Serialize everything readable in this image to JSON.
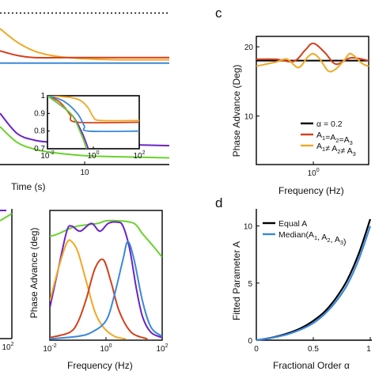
{
  "chart_data": [
    {
      "panel": "top-left (cropped)",
      "type": "line",
      "xlabel": "Time (s)",
      "x_ticks": [
        "10"
      ],
      "series": [
        {
          "color": "#000000",
          "style": "dotted",
          "x": [
            0,
            10,
            20
          ],
          "y": [
            1.0,
            1.0,
            1.0
          ]
        },
        {
          "color": "#f0a824",
          "x": [
            0,
            2,
            4,
            6,
            8,
            10,
            14,
            20
          ],
          "y": [
            0.93,
            0.87,
            0.83,
            0.81,
            0.8,
            0.795,
            0.79,
            0.79
          ]
        },
        {
          "color": "#d4401c",
          "x": [
            0,
            2,
            4,
            8,
            12,
            20
          ],
          "y": [
            0.83,
            0.81,
            0.8,
            0.8,
            0.8,
            0.8
          ]
        },
        {
          "color": "#3b88d8",
          "x": [
            0,
            20
          ],
          "y": [
            0.775,
            0.775
          ]
        },
        {
          "color": "#6b24c8",
          "x": [
            0,
            2,
            4,
            6,
            10,
            14,
            20
          ],
          "y": [
            0.55,
            0.46,
            0.43,
            0.42,
            0.41,
            0.41,
            0.405
          ]
        },
        {
          "color": "#6ad22c",
          "x": [
            0,
            2,
            4,
            6,
            10,
            14,
            20
          ],
          "y": [
            0.49,
            0.42,
            0.39,
            0.375,
            0.36,
            0.355,
            0.35
          ]
        }
      ],
      "inset": {
        "type": "line",
        "x_scale": "log",
        "x_ticks": [
          "10",
          "10",
          "10"
        ],
        "x_tick_exponents": [
          "-2",
          "0",
          "2"
        ],
        "y_ticks": [
          "1",
          "0.9",
          "0.8",
          "0.7"
        ],
        "ylim": [
          0.7,
          1.0
        ],
        "series": [
          {
            "color": "#f0a824",
            "x": [
              0.01,
              0.1,
              0.3,
              0.6,
              1,
              2,
              100
            ],
            "y": [
              1.0,
              0.99,
              0.97,
              0.93,
              0.88,
              0.86,
              0.86
            ]
          },
          {
            "color": "#d4401c",
            "x": [
              0.01,
              0.03,
              0.06,
              0.1,
              0.2,
              100
            ],
            "y": [
              1.0,
              0.97,
              0.93,
              0.89,
              0.85,
              0.85
            ]
          },
          {
            "color": "#3b88d8",
            "x": [
              0.01,
              0.05,
              0.2,
              0.4,
              0.6,
              100
            ],
            "y": [
              1.0,
              0.97,
              0.9,
              0.83,
              0.8,
              0.8
            ]
          },
          {
            "color": "#6b24c8",
            "x": [
              0.01,
              0.1,
              0.3,
              0.6
            ],
            "y": [
              1.0,
              0.9,
              0.8,
              0.7
            ]
          },
          {
            "color": "#6ad22c",
            "x": [
              0.01,
              0.1,
              0.3,
              0.5
            ],
            "y": [
              1.0,
              0.9,
              0.78,
              0.7
            ]
          }
        ]
      }
    },
    {
      "panel": "c",
      "type": "line",
      "ylabel": "Phase Advance (Deg)",
      "xlabel": "Frequency (Hz)",
      "x_scale": "log",
      "x_ticks": [
        "10"
      ],
      "x_tick_exponents": [
        "0"
      ],
      "y_ticks": [
        "20",
        "10"
      ],
      "ylim": [
        3,
        21.5
      ],
      "legend_location": "lower-right",
      "series": [
        {
          "name": "α = 0.2",
          "color": "#000000",
          "x": [
            0.03,
            30
          ],
          "y": [
            18,
            18
          ]
        },
        {
          "name": "A1=A2=A3",
          "color": "#d4401c",
          "x": [
            0.03,
            0.1,
            0.3,
            0.6,
            1,
            2,
            4,
            10,
            30
          ],
          "y": [
            18.2,
            18.2,
            17.9,
            19.5,
            20.5,
            19.2,
            17.5,
            18.4,
            18.0
          ]
        },
        {
          "name": "A1≠A2≠A3",
          "color": "#f0a824",
          "x": [
            0.03,
            0.1,
            0.2,
            0.4,
            0.7,
            1,
            1.5,
            2.5,
            4,
            7,
            10,
            20,
            30
          ],
          "y": [
            17.2,
            17.8,
            18.2,
            17.0,
            18.5,
            19.0,
            18.2,
            16.5,
            16.8,
            18.2,
            19.0,
            17.6,
            17.2
          ]
        }
      ]
    },
    {
      "panel": "bottom-left (cropped)",
      "type": "line",
      "x_scale": "log",
      "x_ticks": [
        "10"
      ],
      "x_tick_exponents": [
        "2"
      ],
      "series": [
        {
          "color": "#6ad22c",
          "x": [
            1,
            10,
            100
          ],
          "y": [
            0.85,
            0.92,
            0.98
          ]
        },
        {
          "color": "#6b24c8",
          "x": [
            1,
            100
          ],
          "y": [
            0.9,
            0.9
          ]
        }
      ]
    },
    {
      "panel": "bottom-middle",
      "type": "line",
      "ylabel": "Phase Advance (deg)",
      "xlabel": "Frequency (Hz)",
      "x_scale": "log",
      "x_ticks": [
        "10",
        "10",
        "10"
      ],
      "x_tick_exponents": [
        "-2",
        "0",
        "2"
      ],
      "ylim": [
        0,
        1
      ],
      "series": [
        {
          "color": "#6ad22c",
          "x": [
            0.01,
            0.02,
            0.05,
            0.1,
            0.5,
            1,
            3,
            10,
            20,
            50,
            100
          ],
          "y": [
            0.8,
            0.82,
            0.86,
            0.88,
            0.9,
            0.92,
            0.92,
            0.9,
            0.82,
            0.72,
            0.64
          ]
        },
        {
          "color": "#6b24c8",
          "x": [
            0.01,
            0.02,
            0.04,
            0.06,
            0.12,
            0.3,
            0.6,
            1.2,
            2.5,
            4,
            7,
            12,
            20,
            40,
            100
          ],
          "y": [
            0.25,
            0.55,
            0.84,
            0.88,
            0.84,
            0.9,
            0.84,
            0.9,
            0.91,
            0.88,
            0.7,
            0.4,
            0.18,
            0.06,
            0.02
          ]
        },
        {
          "color": "#f0a824",
          "x": [
            0.01,
            0.02,
            0.04,
            0.06,
            0.1,
            0.2,
            0.4,
            0.8,
            2,
            5
          ],
          "y": [
            0.3,
            0.55,
            0.75,
            0.76,
            0.68,
            0.45,
            0.22,
            0.1,
            0.03,
            0.01
          ]
        },
        {
          "color": "#d4401c",
          "x": [
            0.01,
            0.05,
            0.1,
            0.2,
            0.4,
            0.8,
            1.5,
            3,
            8,
            30
          ],
          "y": [
            0.02,
            0.06,
            0.14,
            0.32,
            0.55,
            0.62,
            0.45,
            0.22,
            0.06,
            0.01
          ]
        },
        {
          "color": "#3b88d8",
          "x": [
            0.01,
            0.1,
            0.3,
            1,
            2,
            4,
            6,
            10,
            20,
            40,
            100
          ],
          "y": [
            0.01,
            0.03,
            0.06,
            0.15,
            0.35,
            0.62,
            0.76,
            0.62,
            0.3,
            0.1,
            0.03
          ]
        }
      ]
    },
    {
      "panel": "d",
      "type": "line",
      "ylabel": "Fitted Parameter A",
      "xlabel": "Fractional Order α",
      "x_ticks": [
        "0",
        "0.5",
        "1"
      ],
      "y_ticks": [
        "10",
        "5",
        "0"
      ],
      "xlim": [
        0,
        1
      ],
      "ylim": [
        0,
        11.5
      ],
      "legend_location": "top-left",
      "series": [
        {
          "name": "Equal A",
          "color": "#000000",
          "x": [
            0,
            0.1,
            0.2,
            0.3,
            0.4,
            0.5,
            0.6,
            0.7,
            0.8,
            0.9,
            1.0
          ],
          "y": [
            0,
            0.16,
            0.38,
            0.68,
            1.1,
            1.7,
            2.5,
            3.7,
            5.3,
            7.6,
            10.6
          ]
        },
        {
          "name": "Median(A1, A2, A3)",
          "color": "#3b88d8",
          "x": [
            0,
            0.1,
            0.2,
            0.3,
            0.4,
            0.5,
            0.6,
            0.7,
            0.8,
            0.9,
            1.0
          ],
          "y": [
            0,
            0.14,
            0.33,
            0.6,
            0.98,
            1.5,
            2.3,
            3.4,
            4.9,
            7.1,
            10.0
          ]
        }
      ]
    }
  ],
  "panel_labels": {
    "c": "c",
    "d": "d"
  },
  "legend_c": [
    {
      "base": "α = 0.2"
    },
    {
      "base": "A",
      "parts": [
        [
          "A",
          "1"
        ],
        [
          "=A",
          "2"
        ],
        [
          "=A",
          "3"
        ]
      ]
    },
    {
      "base": "A",
      "parts": [
        [
          "A",
          "1"
        ],
        [
          "≠ A",
          "2"
        ],
        [
          "≠ A",
          "3"
        ]
      ]
    }
  ],
  "legend_d": {
    "equal": "Equal A",
    "median_prefix": "Median(A",
    "median_parts": [
      [
        "",
        "1"
      ],
      [
        ", A",
        "2"
      ],
      [
        ", A",
        "3"
      ]
    ],
    "median_suffix": ")"
  }
}
